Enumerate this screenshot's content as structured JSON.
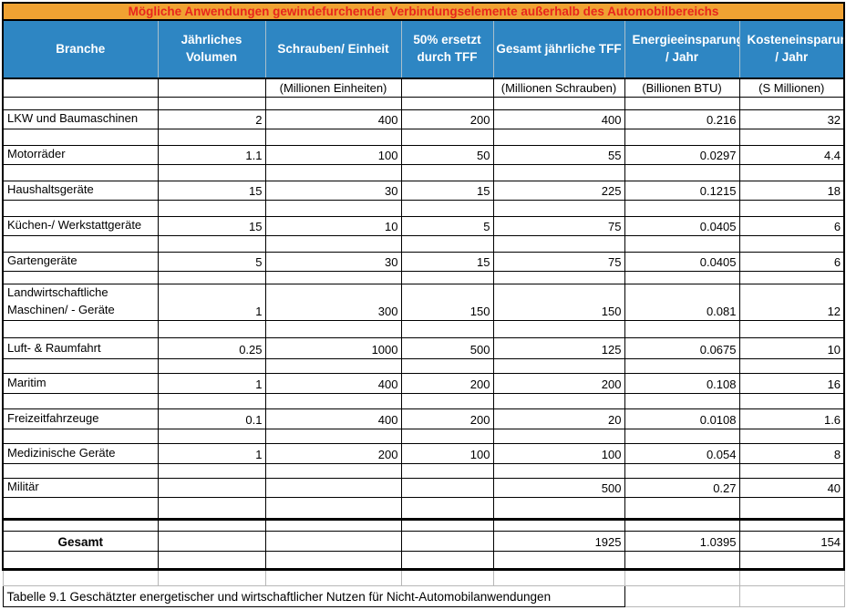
{
  "title": "Mögliche Anwendungen gewindefurchender Verbindungselemente außerhalb des Automobilbereichs",
  "caption": "Tabelle 9.1 Geschätzter energetischer und wirtschaftlicher Nutzen für Nicht-Automobilanwendungen",
  "colors": {
    "title_bg": "#F0A232",
    "title_text": "#E8251D",
    "header_bg": "#2E86C3",
    "grid_gray": "#B7B7B7"
  },
  "table": {
    "columns": [
      {
        "label": "Branche",
        "unit": ""
      },
      {
        "label": "Jährliches Volumen",
        "unit": ""
      },
      {
        "label": "Schrauben/ Einheit",
        "unit": "(Millionen Einheiten)"
      },
      {
        "label": "50% ersetzt durch TFF",
        "unit": ""
      },
      {
        "label": "Gesamt jährliche TFF",
        "unit": "(Millionen Schrauben)"
      },
      {
        "label": "Energieeinsparung / Jahr",
        "unit": "(Billionen BTU)"
      },
      {
        "label": "Kosteneinsparung / Jahr",
        "unit": "(S Millionen)"
      }
    ],
    "rows": [
      [
        "LKW und Baumaschinen",
        "2",
        "400",
        "200",
        "400",
        "0.216",
        "32"
      ],
      [
        "Motorräder",
        "1.1",
        "100",
        "50",
        "55",
        "0.0297",
        "4.4"
      ],
      [
        "Haushaltsgeräte",
        "15",
        "30",
        "15",
        "225",
        "0.1215",
        "18"
      ],
      [
        "Küchen-/ Werkstattgeräte",
        "15",
        "10",
        "5",
        "75",
        "0.0405",
        "6"
      ],
      [
        "Gartengeräte",
        "5",
        "30",
        "15",
        "75",
        "0.0405",
        "6"
      ],
      [
        "Landwirtschaftliche Maschinen/ - Geräte",
        "1",
        "300",
        "150",
        "150",
        "0.081",
        "12"
      ],
      [
        "Luft- & Raumfahrt",
        "0.25",
        "1000",
        "500",
        "125",
        "0.0675",
        "10"
      ],
      [
        "Maritim",
        "1",
        "400",
        "200",
        "200",
        "0.108",
        "16"
      ],
      [
        "Freizeitfahrzeuge",
        "0.1",
        "400",
        "200",
        "20",
        "0.0108",
        "1.6"
      ],
      [
        "Medizinische Geräte",
        "1",
        "200",
        "100",
        "100",
        "0.054",
        "8"
      ],
      [
        "Militär",
        "",
        "",
        "",
        "500",
        "0.27",
        "40"
      ]
    ],
    "total": {
      "label": "Gesamt",
      "values": [
        "",
        "",
        "",
        "1925",
        "1.0395",
        "154"
      ]
    }
  }
}
